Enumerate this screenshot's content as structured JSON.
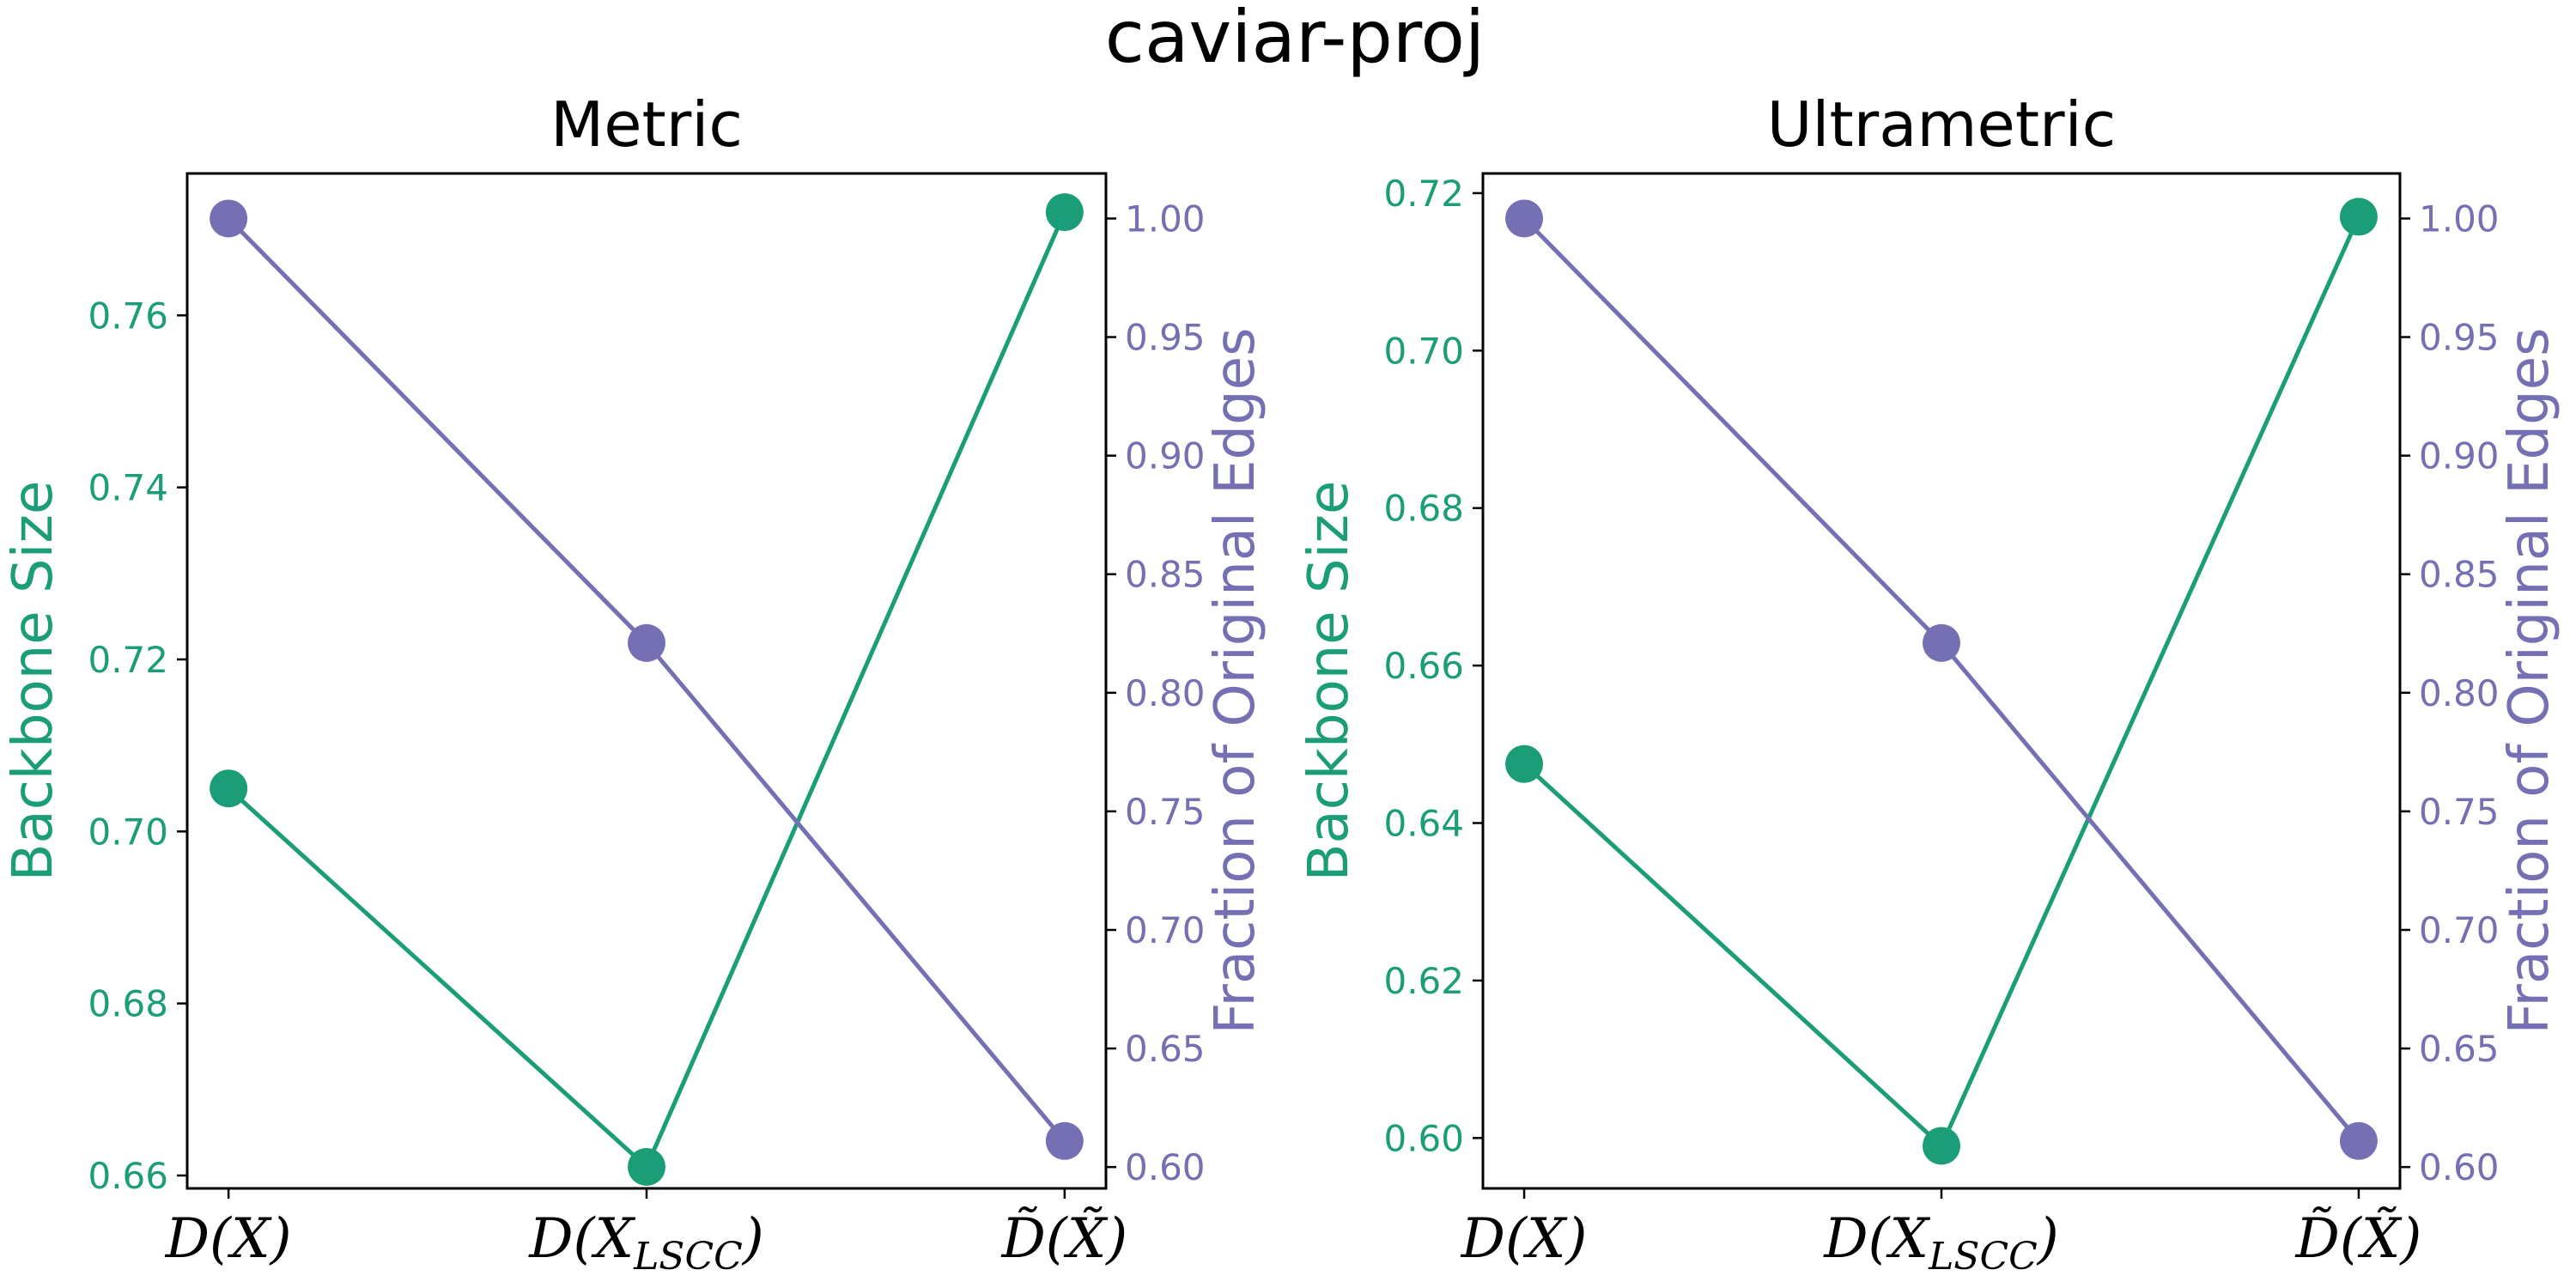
{
  "title": "caviar-proj",
  "colors": {
    "backbone": "#1b9e77",
    "fraction": "#7570b3"
  },
  "chart_data": [
    {
      "type": "line",
      "title": "Metric",
      "categories": [
        "D(X)",
        "D(X_LSCC)",
        "D̃(X̃)"
      ],
      "y_left_label": "Backbone Size",
      "y_right_label": "Fraction of Original Edges",
      "y_left_lim": [
        0.6585,
        0.7765
      ],
      "y_left_ticks": [
        "0.66",
        "0.68",
        "0.70",
        "0.72",
        "0.74",
        "0.76"
      ],
      "y_right_lim": [
        0.591,
        1.019
      ],
      "y_right_ticks": [
        "0.60",
        "0.65",
        "0.70",
        "0.75",
        "0.80",
        "0.85",
        "0.90",
        "0.95",
        "1.00"
      ],
      "series": [
        {
          "name": "Backbone Size",
          "axis": "left",
          "values": [
            0.705,
            0.661,
            0.772
          ]
        },
        {
          "name": "Fraction of Original Edges",
          "axis": "right",
          "values": [
            1.0,
            0.821,
            0.611
          ]
        }
      ]
    },
    {
      "type": "line",
      "title": "Ultrametric",
      "categories": [
        "D(X)",
        "D(X_LSCC)",
        "D̃(X̃)"
      ],
      "y_left_label": "Backbone Size",
      "y_right_label": "Fraction of Original Edges",
      "y_left_lim": [
        0.5936,
        0.7225
      ],
      "y_left_ticks": [
        "0.60",
        "0.62",
        "0.64",
        "0.66",
        "0.68",
        "0.70",
        "0.72"
      ],
      "y_right_lim": [
        0.591,
        1.019
      ],
      "y_right_ticks": [
        "0.60",
        "0.65",
        "0.70",
        "0.75",
        "0.80",
        "0.85",
        "0.90",
        "0.95",
        "1.00"
      ],
      "series": [
        {
          "name": "Backbone Size",
          "axis": "left",
          "values": [
            0.6475,
            0.599,
            0.717
          ]
        },
        {
          "name": "Fraction of Original Edges",
          "axis": "right",
          "values": [
            1.0,
            0.821,
            0.611
          ]
        }
      ]
    }
  ]
}
